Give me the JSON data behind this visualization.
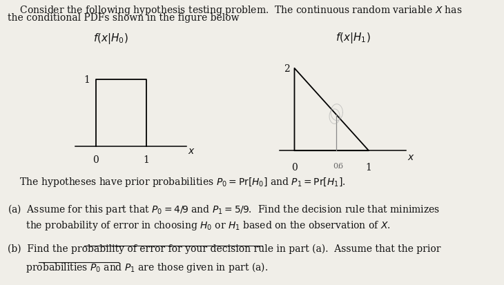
{
  "bg_color": "#f0eee8",
  "text_color": "#111111",
  "header_line1": "    Consider the following hypothesis testing problem.  The continuous random variable $X$ has",
  "header_line2": "the conditional PDFs shown in the figure below",
  "footer_text1": "    The hypotheses have prior probabilities $P_0 = \\mathrm{Pr}\\left[H_0\\right]$ and $P_1 = \\mathrm{Pr}\\left[H_1\\right]$.",
  "footer_text2a_line1": "(a)  Assume for this part that $P_0 = 4/9$ and $P_1 = 5/9$.  Find the decision rule that minimizes",
  "footer_text2a_line2": "      the probability of error in choosing $H_0$ or $H_1$ based on the observation of $X$.",
  "footer_text2b_line1": "(b)  Find the probability of error for your decision rule in part (a).  Assume that the prior",
  "footer_text2b_line2": "      probabilities $P_0$ and $P_1$ are those given in part (a).",
  "left_plot": {
    "xlim": [
      -0.5,
      2.0
    ],
    "ylim": [
      -0.2,
      1.6
    ],
    "xlabel": "x",
    "ylabel_text": "$f(x|H_0)$",
    "ytick_label": "1",
    "xtick_labels": [
      "0",
      "1"
    ]
  },
  "right_plot": {
    "xlim": [
      -0.3,
      1.6
    ],
    "ylim": [
      -0.35,
      2.7
    ],
    "xlabel": "x",
    "ylabel_text": "$f(x|H_1)$",
    "ytick_label": "2",
    "xtick_labels": [
      "0",
      "1"
    ],
    "pencil_x": 0.56,
    "pencil_y_top": 0.88
  }
}
